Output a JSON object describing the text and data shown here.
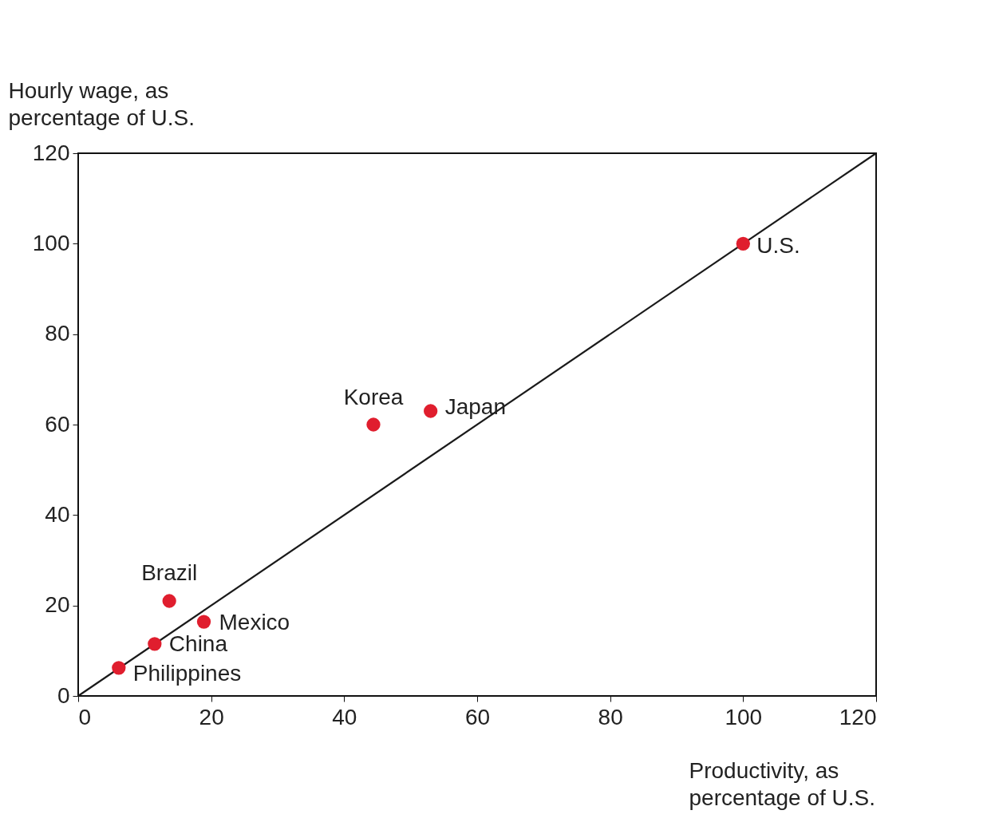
{
  "chart_data": {
    "type": "scatter",
    "xlabel": "Productivity, as\npercentage of U.S.",
    "ylabel": "Hourly wage, as\npercentage of U.S.",
    "xlim": [
      0,
      120
    ],
    "ylim": [
      0,
      120
    ],
    "xticks": [
      0,
      20,
      40,
      60,
      80,
      100,
      120
    ],
    "yticks": [
      0,
      20,
      40,
      60,
      80,
      100,
      120
    ],
    "grid": false,
    "series": [
      {
        "type": "line",
        "color": "#1a1a1a",
        "line_style": "solid",
        "x": [
          0,
          120
        ],
        "values": [
          0,
          120
        ]
      },
      {
        "type": "scatter",
        "color": "#e01e2e",
        "marker": "circle",
        "x": [
          100,
          53,
          44.4,
          13.7,
          18.9,
          11.5,
          6.1
        ],
        "values": [
          100,
          63,
          60,
          21,
          16.4,
          11.5,
          6.2
        ]
      }
    ],
    "annotations": [
      {
        "text": "U.S.",
        "x": 100,
        "y": 100
      },
      {
        "text": "Japan",
        "x": 53,
        "y": 63
      },
      {
        "text": "Korea",
        "x": 44.4,
        "y": 60
      },
      {
        "text": "Brazil",
        "x": 13.7,
        "y": 21
      },
      {
        "text": "Mexico",
        "x": 18.9,
        "y": 16.4
      },
      {
        "text": "China",
        "x": 11.5,
        "y": 11.5
      },
      {
        "text": "Philippines",
        "x": 6.1,
        "y": 6.2
      }
    ]
  }
}
